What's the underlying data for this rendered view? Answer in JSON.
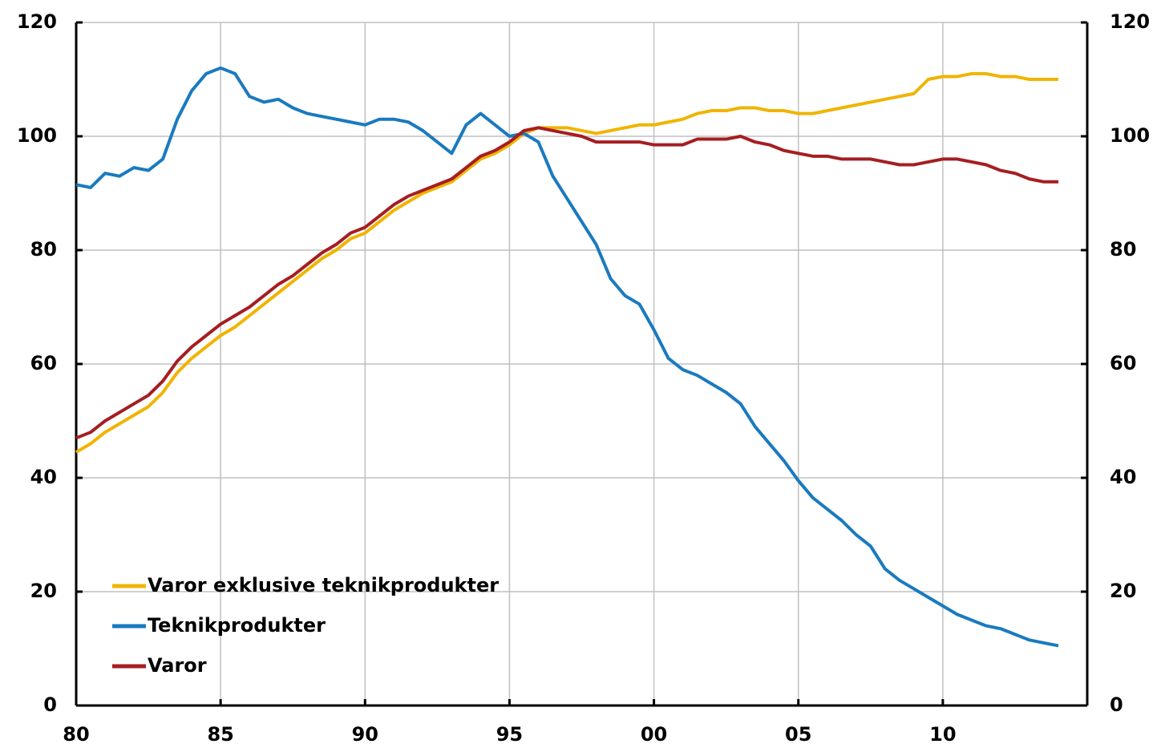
{
  "chart_data": {
    "type": "line",
    "x": [
      1980,
      1980.5,
      1981,
      1981.5,
      1982,
      1982.5,
      1983,
      1983.5,
      1984,
      1984.5,
      1985,
      1985.5,
      1986,
      1986.5,
      1987,
      1987.5,
      1988,
      1988.5,
      1989,
      1989.5,
      1990,
      1990.5,
      1991,
      1991.5,
      1992,
      1992.5,
      1993,
      1993.5,
      1994,
      1994.5,
      1995,
      1995.5,
      1996,
      1996.5,
      1997,
      1997.5,
      1998,
      1998.5,
      1999,
      1999.5,
      2000,
      2000.5,
      2001,
      2001.5,
      2002,
      2002.5,
      2003,
      2003.5,
      2004,
      2004.5,
      2005,
      2005.5,
      2006,
      2006.5,
      2007,
      2007.5,
      2008,
      2008.5,
      2009,
      2009.5,
      2010,
      2010.5,
      2011,
      2011.5,
      2012,
      2012.5,
      2013,
      2013.5,
      2014
    ],
    "series": [
      {
        "name": "Varor exklusive teknikprodukter",
        "color": "#f0b400",
        "values": [
          44.5,
          46,
          48,
          49.5,
          51,
          52.5,
          55,
          58.5,
          61,
          63,
          65,
          66.5,
          68.5,
          70.5,
          72.5,
          74.5,
          76.5,
          78.5,
          80,
          82,
          83,
          85,
          87,
          88.5,
          90,
          91,
          92,
          94,
          96,
          97,
          98.5,
          100.5,
          101.5,
          101.5,
          101.5,
          101,
          100.5,
          101,
          101.5,
          102,
          102,
          102.5,
          103,
          104,
          104.5,
          104.5,
          105,
          105,
          104.5,
          104.5,
          104,
          104,
          104.5,
          105,
          105.5,
          106,
          106.5,
          107,
          107.5,
          110,
          110.5,
          110.5,
          111,
          111,
          110.5,
          110.5,
          110,
          110,
          110
        ]
      },
      {
        "name": "Teknikprodukter",
        "color": "#1a7abf",
        "values": [
          91.5,
          91,
          93.5,
          93,
          94.5,
          94,
          96,
          103,
          108,
          111,
          112,
          111,
          107,
          106,
          106.5,
          105,
          104,
          103.5,
          103,
          102.5,
          102,
          103,
          103,
          102.5,
          101,
          99,
          97,
          102,
          104,
          102,
          100,
          100.5,
          99,
          93,
          89,
          85,
          81,
          75,
          72,
          70.5,
          66,
          61,
          59,
          58,
          56.5,
          55,
          53,
          49,
          46,
          43,
          39.5,
          36.5,
          34.5,
          32.5,
          30,
          28,
          24,
          22,
          20.5,
          19,
          17.5,
          16,
          15,
          14,
          13.5,
          12.5,
          11.5,
          11,
          10.5
        ]
      },
      {
        "name": "Varor",
        "color": "#a51e22",
        "values": [
          47,
          48,
          50,
          51.5,
          53,
          54.5,
          57,
          60.5,
          63,
          65,
          67,
          68.5,
          70,
          72,
          74,
          75.5,
          77.5,
          79.5,
          81,
          83,
          84,
          86,
          88,
          89.5,
          90.5,
          91.5,
          92.5,
          94.5,
          96.5,
          97.5,
          99,
          101,
          101.5,
          101,
          100.5,
          100,
          99,
          99,
          99,
          99,
          98.5,
          98.5,
          98.5,
          99.5,
          99.5,
          99.5,
          100,
          99,
          98.5,
          97.5,
          97,
          96.5,
          96.5,
          96,
          96,
          96,
          95.5,
          95,
          95,
          95.5,
          96,
          96,
          95.5,
          95,
          94,
          93.5,
          92.5,
          92,
          92
        ]
      }
    ],
    "xlim": [
      1980,
      2015
    ],
    "xticks": [
      {
        "value": 1980,
        "label": "80"
      },
      {
        "value": 1985,
        "label": "85"
      },
      {
        "value": 1990,
        "label": "90"
      },
      {
        "value": 1995,
        "label": "95"
      },
      {
        "value": 2000,
        "label": "00"
      },
      {
        "value": 2005,
        "label": "05"
      },
      {
        "value": 2010,
        "label": "10"
      }
    ],
    "ylim": [
      0,
      120
    ],
    "yticks": [
      0,
      20,
      40,
      60,
      80,
      100,
      120
    ],
    "y2lim": [
      0,
      120
    ],
    "y2ticks": [
      0,
      20,
      40,
      60,
      80,
      100,
      120
    ],
    "grid": true,
    "legend": "lower left"
  }
}
